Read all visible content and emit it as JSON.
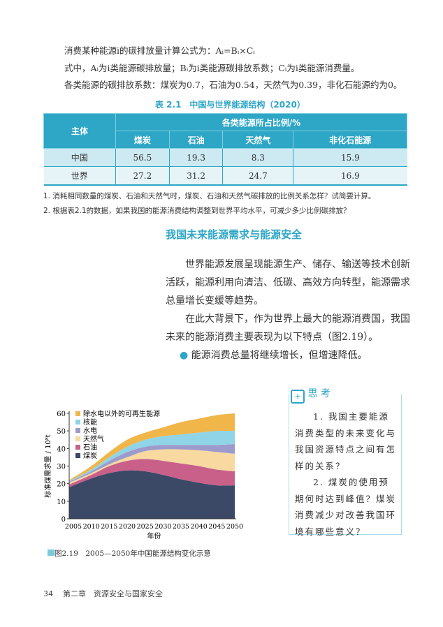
{
  "formula": {
    "line1": "消费某种能源i的碳排放量计算公式为：Aᵢ=Bᵢ×Cᵢ",
    "line2": "式中，Aᵢ为i类能源碳排放量；Bᵢ为i类能源碳排放系数；Cᵢ为i类能源消费量。",
    "line3": "各类能源的碳排放系数：煤炭为0.7，石油为0.54，天然气为0.39，非化石能源约为0。"
  },
  "table": {
    "caption": "表 2.1　中国与世界能源结构（2020）",
    "header_subject": "主体",
    "header_group": "各类能源所占比例/%",
    "columns": [
      "煤炭",
      "石油",
      "天然气",
      "非化石能源"
    ],
    "rows": [
      {
        "label": "中国",
        "values": [
          "56.5",
          "19.3",
          "8.3",
          "15.9"
        ]
      },
      {
        "label": "世界",
        "values": [
          "27.2",
          "31.2",
          "24.7",
          "16.9"
        ]
      }
    ]
  },
  "questions": [
    "1. 消耗相同数量的煤炭、石油和天然气时，煤炭、石油和天然气碳排放的比例关系怎样？试简要计算。",
    "2. 根据表2.1的数据，如果我国的能源消费结构调整到世界平均水平，可减少多少比例碳排放？"
  ],
  "section": {
    "title": "我国未来能源需求与能源安全",
    "para1": [
      "世界能源发展呈现能源生产、储存、输送等技术创新",
      "活跃，能源利用向清洁、低碳、高效方向转型，能源需求",
      "总量增长变缓等趋势。"
    ],
    "para2": [
      "在此大背景下，作为世界上最大的能源消费国，我国",
      "未来的能源消费主要表现为以下特点（图2.19）。"
    ],
    "bullet": "能源消费总量将继续增长，但增速降低。"
  },
  "think": {
    "title": "思 考",
    "q1": "1. 我国主要能源消费类型的未来变化与我国资源特点之间有怎样的关系？",
    "q2": "2. 煤炭的使用预期何时达到峰值？煤炭消费减少对改善我国环境有哪些意义？"
  },
  "figure_caption": "图2.19　2005—2050年中国能源结构变化示意",
  "footer": {
    "page": "34",
    "chapter": "第二章　资源安全与国家安全"
  },
  "chart_data": {
    "type": "area",
    "stacked": true,
    "xlabel": "年份",
    "ylabel": "标准煤需求量 / 10⁸t",
    "ylim": [
      0,
      60
    ],
    "yticks": [
      0,
      10,
      20,
      30,
      40,
      50,
      60
    ],
    "x": [
      2005,
      2010,
      2015,
      2020,
      2025,
      2030,
      2035,
      2040,
      2045,
      2050
    ],
    "legend_position": "top-left",
    "series": [
      {
        "name": "煤炭",
        "color": "#3c4966",
        "values": [
          18,
          23,
          26,
          27.5,
          27,
          25,
          22.5,
          20.5,
          19,
          19
        ]
      },
      {
        "name": "石油",
        "color": "#c8608a",
        "values": [
          1.5,
          2,
          4,
          5.5,
          7,
          8,
          9,
          9.5,
          9,
          8
        ]
      },
      {
        "name": "天然气",
        "color": "#f8d9a0",
        "values": [
          1,
          1,
          1,
          2,
          4.5,
          6.5,
          8,
          9,
          10,
          10
        ]
      },
      {
        "name": "水电",
        "color": "#9d9bcb",
        "values": [
          0.5,
          1,
          2,
          3,
          2.5,
          2.5,
          2.5,
          3,
          4,
          5.5
        ]
      },
      {
        "name": "核能",
        "color": "#90d4e8",
        "values": [
          0.5,
          1,
          2,
          3,
          4,
          5,
          6,
          7,
          8,
          7.5
        ]
      },
      {
        "name": "除水电以外的可再生能源",
        "color": "#f0b64a",
        "values": [
          0.5,
          2,
          3,
          4,
          4,
          5,
          7,
          8,
          9,
          10
        ]
      }
    ]
  }
}
